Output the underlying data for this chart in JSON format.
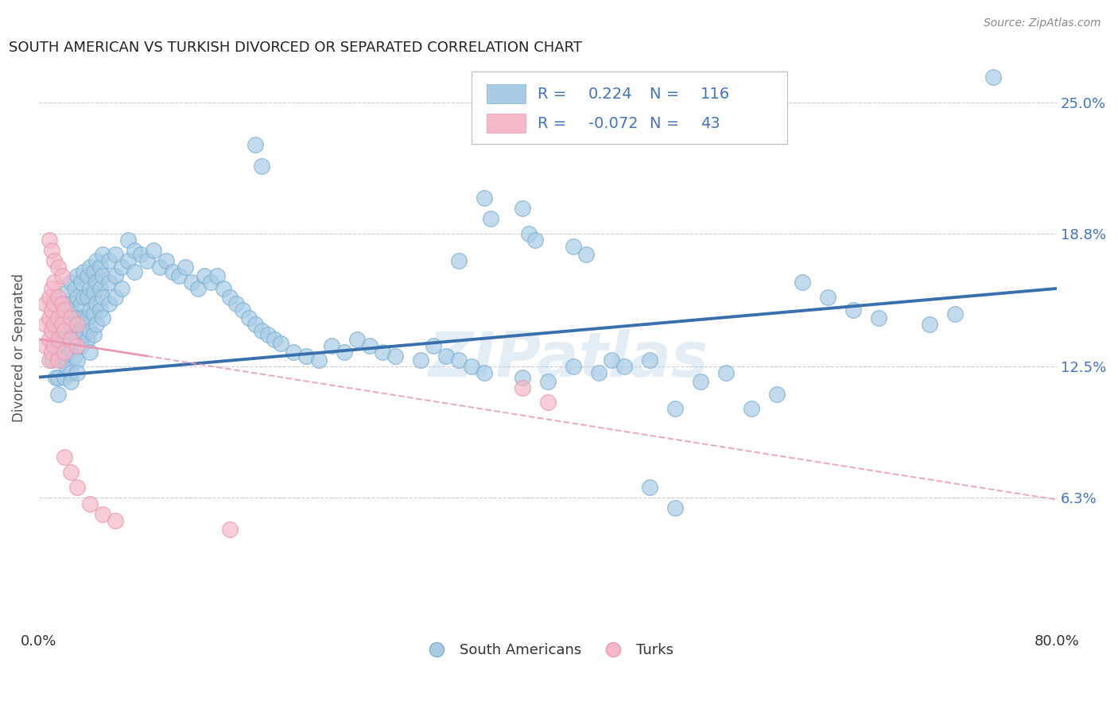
{
  "title": "SOUTH AMERICAN VS TURKISH DIVORCED OR SEPARATED CORRELATION CHART",
  "source": "Source: ZipAtlas.com",
  "ylabel": "Divorced or Separated",
  "ytick_labels": [
    "6.3%",
    "12.5%",
    "18.8%",
    "25.0%"
  ],
  "ytick_values": [
    0.063,
    0.125,
    0.188,
    0.25
  ],
  "xlim": [
    0.0,
    0.8
  ],
  "ylim": [
    0.0,
    0.268
  ],
  "blue_R": 0.224,
  "blue_N": 116,
  "pink_R": -0.072,
  "pink_N": 43,
  "watermark": "ZIPatlas",
  "blue_color": "#a8cce4",
  "pink_color": "#f4b8c8",
  "blue_edge_color": "#7ab0d4",
  "pink_edge_color": "#e898b0",
  "blue_line_color": "#3a6fad",
  "pink_line_color": "#e898b0",
  "background_color": "#ffffff",
  "grid_color": "#cccccc",
  "legend_text_color": "#4472c4",
  "blue_scatter": [
    [
      0.01,
      0.128
    ],
    [
      0.012,
      0.135
    ],
    [
      0.013,
      0.12
    ],
    [
      0.015,
      0.145
    ],
    [
      0.015,
      0.13
    ],
    [
      0.015,
      0.12
    ],
    [
      0.018,
      0.155
    ],
    [
      0.018,
      0.14
    ],
    [
      0.018,
      0.128
    ],
    [
      0.02,
      0.155
    ],
    [
      0.02,
      0.14
    ],
    [
      0.02,
      0.13
    ],
    [
      0.02,
      0.12
    ],
    [
      0.022,
      0.16
    ],
    [
      0.022,
      0.148
    ],
    [
      0.022,
      0.135
    ],
    [
      0.022,
      0.125
    ],
    [
      0.025,
      0.165
    ],
    [
      0.025,
      0.155
    ],
    [
      0.025,
      0.142
    ],
    [
      0.025,
      0.132
    ],
    [
      0.025,
      0.122
    ],
    [
      0.025,
      0.118
    ],
    [
      0.028,
      0.162
    ],
    [
      0.028,
      0.15
    ],
    [
      0.028,
      0.14
    ],
    [
      0.028,
      0.13
    ],
    [
      0.03,
      0.168
    ],
    [
      0.03,
      0.158
    ],
    [
      0.03,
      0.148
    ],
    [
      0.03,
      0.138
    ],
    [
      0.03,
      0.128
    ],
    [
      0.03,
      0.122
    ],
    [
      0.033,
      0.165
    ],
    [
      0.033,
      0.155
    ],
    [
      0.033,
      0.145
    ],
    [
      0.033,
      0.135
    ],
    [
      0.035,
      0.17
    ],
    [
      0.035,
      0.158
    ],
    [
      0.035,
      0.148
    ],
    [
      0.035,
      0.14
    ],
    [
      0.038,
      0.168
    ],
    [
      0.038,
      0.158
    ],
    [
      0.038,
      0.148
    ],
    [
      0.038,
      0.138
    ],
    [
      0.04,
      0.172
    ],
    [
      0.04,
      0.162
    ],
    [
      0.04,
      0.152
    ],
    [
      0.04,
      0.142
    ],
    [
      0.04,
      0.132
    ],
    [
      0.043,
      0.17
    ],
    [
      0.043,
      0.16
    ],
    [
      0.043,
      0.15
    ],
    [
      0.043,
      0.14
    ],
    [
      0.045,
      0.175
    ],
    [
      0.045,
      0.165
    ],
    [
      0.045,
      0.155
    ],
    [
      0.045,
      0.145
    ],
    [
      0.048,
      0.172
    ],
    [
      0.048,
      0.162
    ],
    [
      0.048,
      0.152
    ],
    [
      0.05,
      0.178
    ],
    [
      0.05,
      0.168
    ],
    [
      0.05,
      0.158
    ],
    [
      0.05,
      0.148
    ],
    [
      0.055,
      0.175
    ],
    [
      0.055,
      0.165
    ],
    [
      0.055,
      0.155
    ],
    [
      0.06,
      0.178
    ],
    [
      0.06,
      0.168
    ],
    [
      0.06,
      0.158
    ],
    [
      0.065,
      0.172
    ],
    [
      0.065,
      0.162
    ],
    [
      0.07,
      0.185
    ],
    [
      0.07,
      0.175
    ],
    [
      0.075,
      0.18
    ],
    [
      0.075,
      0.17
    ],
    [
      0.08,
      0.178
    ],
    [
      0.085,
      0.175
    ],
    [
      0.09,
      0.18
    ],
    [
      0.095,
      0.172
    ],
    [
      0.1,
      0.175
    ],
    [
      0.105,
      0.17
    ],
    [
      0.11,
      0.168
    ],
    [
      0.115,
      0.172
    ],
    [
      0.12,
      0.165
    ],
    [
      0.125,
      0.162
    ],
    [
      0.13,
      0.168
    ],
    [
      0.135,
      0.165
    ],
    [
      0.14,
      0.168
    ],
    [
      0.145,
      0.162
    ],
    [
      0.15,
      0.158
    ],
    [
      0.155,
      0.155
    ],
    [
      0.16,
      0.152
    ],
    [
      0.165,
      0.148
    ],
    [
      0.17,
      0.145
    ],
    [
      0.175,
      0.142
    ],
    [
      0.18,
      0.14
    ],
    [
      0.185,
      0.138
    ],
    [
      0.19,
      0.136
    ],
    [
      0.2,
      0.132
    ],
    [
      0.21,
      0.13
    ],
    [
      0.22,
      0.128
    ],
    [
      0.23,
      0.135
    ],
    [
      0.24,
      0.132
    ],
    [
      0.25,
      0.138
    ],
    [
      0.26,
      0.135
    ],
    [
      0.27,
      0.132
    ],
    [
      0.28,
      0.13
    ],
    [
      0.3,
      0.128
    ],
    [
      0.31,
      0.135
    ],
    [
      0.32,
      0.13
    ],
    [
      0.33,
      0.128
    ],
    [
      0.34,
      0.125
    ],
    [
      0.35,
      0.122
    ],
    [
      0.38,
      0.12
    ],
    [
      0.4,
      0.118
    ],
    [
      0.42,
      0.125
    ],
    [
      0.44,
      0.122
    ],
    [
      0.45,
      0.128
    ],
    [
      0.46,
      0.125
    ],
    [
      0.48,
      0.128
    ],
    [
      0.5,
      0.105
    ],
    [
      0.52,
      0.118
    ],
    [
      0.54,
      0.122
    ],
    [
      0.56,
      0.105
    ],
    [
      0.58,
      0.112
    ],
    [
      0.015,
      0.112
    ],
    [
      0.17,
      0.23
    ],
    [
      0.175,
      0.22
    ],
    [
      0.35,
      0.205
    ],
    [
      0.355,
      0.195
    ],
    [
      0.38,
      0.2
    ],
    [
      0.385,
      0.188
    ],
    [
      0.39,
      0.185
    ],
    [
      0.42,
      0.182
    ],
    [
      0.43,
      0.178
    ],
    [
      0.33,
      0.175
    ],
    [
      0.6,
      0.165
    ],
    [
      0.62,
      0.158
    ],
    [
      0.64,
      0.152
    ],
    [
      0.66,
      0.148
    ],
    [
      0.7,
      0.145
    ],
    [
      0.72,
      0.15
    ],
    [
      0.75,
      0.262
    ],
    [
      0.5,
      0.058
    ],
    [
      0.48,
      0.068
    ]
  ],
  "pink_scatter": [
    [
      0.005,
      0.155
    ],
    [
      0.005,
      0.145
    ],
    [
      0.005,
      0.135
    ],
    [
      0.008,
      0.158
    ],
    [
      0.008,
      0.148
    ],
    [
      0.008,
      0.138
    ],
    [
      0.008,
      0.128
    ],
    [
      0.01,
      0.162
    ],
    [
      0.01,
      0.152
    ],
    [
      0.01,
      0.142
    ],
    [
      0.01,
      0.132
    ],
    [
      0.012,
      0.165
    ],
    [
      0.012,
      0.155
    ],
    [
      0.012,
      0.145
    ],
    [
      0.012,
      0.135
    ],
    [
      0.015,
      0.158
    ],
    [
      0.015,
      0.148
    ],
    [
      0.015,
      0.138
    ],
    [
      0.015,
      0.128
    ],
    [
      0.018,
      0.155
    ],
    [
      0.018,
      0.145
    ],
    [
      0.02,
      0.152
    ],
    [
      0.02,
      0.142
    ],
    [
      0.02,
      0.132
    ],
    [
      0.025,
      0.148
    ],
    [
      0.025,
      0.138
    ],
    [
      0.03,
      0.145
    ],
    [
      0.03,
      0.135
    ],
    [
      0.008,
      0.185
    ],
    [
      0.01,
      0.18
    ],
    [
      0.012,
      0.175
    ],
    [
      0.015,
      0.172
    ],
    [
      0.018,
      0.168
    ],
    [
      0.02,
      0.082
    ],
    [
      0.025,
      0.075
    ],
    [
      0.03,
      0.068
    ],
    [
      0.04,
      0.06
    ],
    [
      0.05,
      0.055
    ],
    [
      0.06,
      0.052
    ],
    [
      0.15,
      0.048
    ],
    [
      0.38,
      0.115
    ],
    [
      0.4,
      0.108
    ]
  ],
  "blue_trend": {
    "x_start": 0.0,
    "y_start": 0.12,
    "x_end": 0.8,
    "y_end": 0.162
  },
  "pink_trend_solid": {
    "x_start": 0.0,
    "y_start": 0.138,
    "x_end": 0.085,
    "y_end": 0.13
  },
  "pink_trend_dashed": {
    "x_start": 0.085,
    "y_start": 0.13,
    "x_end": 0.8,
    "y_end": 0.062
  }
}
